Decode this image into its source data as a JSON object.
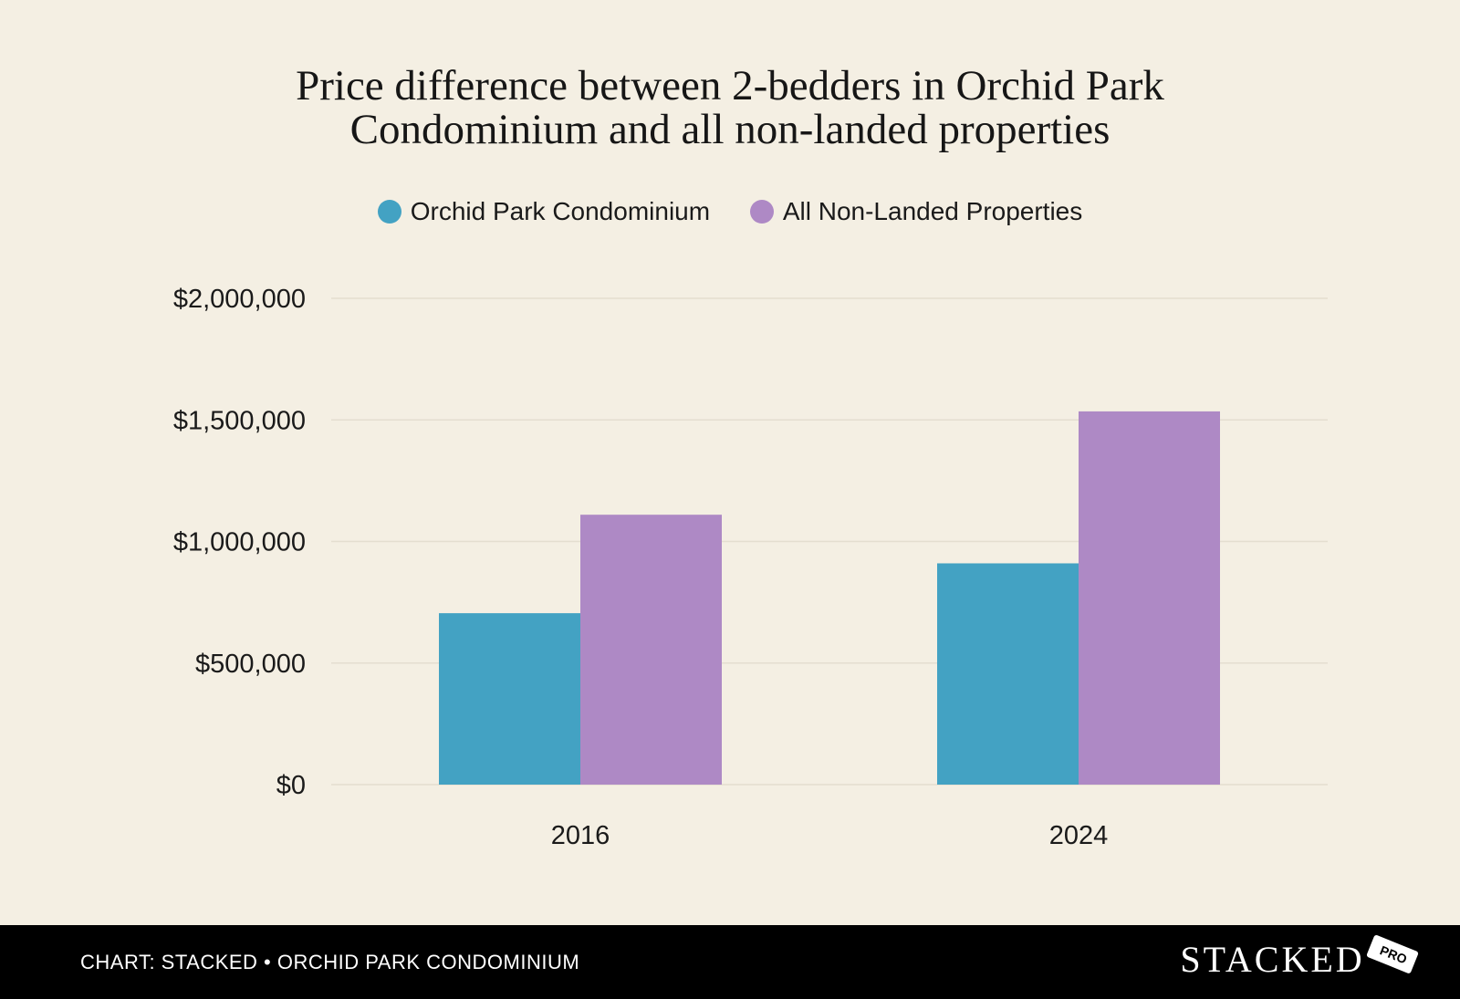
{
  "chart_data": {
    "type": "bar",
    "title_lines": [
      "Price difference between 2-bedders in Orchid Park",
      "Condominium and all non-landed properties"
    ],
    "categories": [
      "2016",
      "2024"
    ],
    "series": [
      {
        "name": "Orchid Park Condominium",
        "color": "#43a2c3",
        "values": [
          705000,
          910000
        ]
      },
      {
        "name": "All Non-Landed Properties",
        "color": "#ae89c5",
        "values": [
          1110000,
          1535000
        ]
      }
    ],
    "ylim": [
      0,
      2000000
    ],
    "yticks": [
      0,
      500000,
      1000000,
      1500000,
      2000000
    ],
    "ytick_labels": [
      "$0",
      "$500,000",
      "$1,000,000",
      "$1,500,000",
      "$2,000,000"
    ],
    "xlabel": "",
    "ylabel": "",
    "grid": true,
    "legend_position": "top-center"
  },
  "footer": {
    "source": "CHART: STACKED • ORCHID PARK CONDOMINIUM",
    "brand": "STACKED",
    "brand_tag": "PRO"
  }
}
